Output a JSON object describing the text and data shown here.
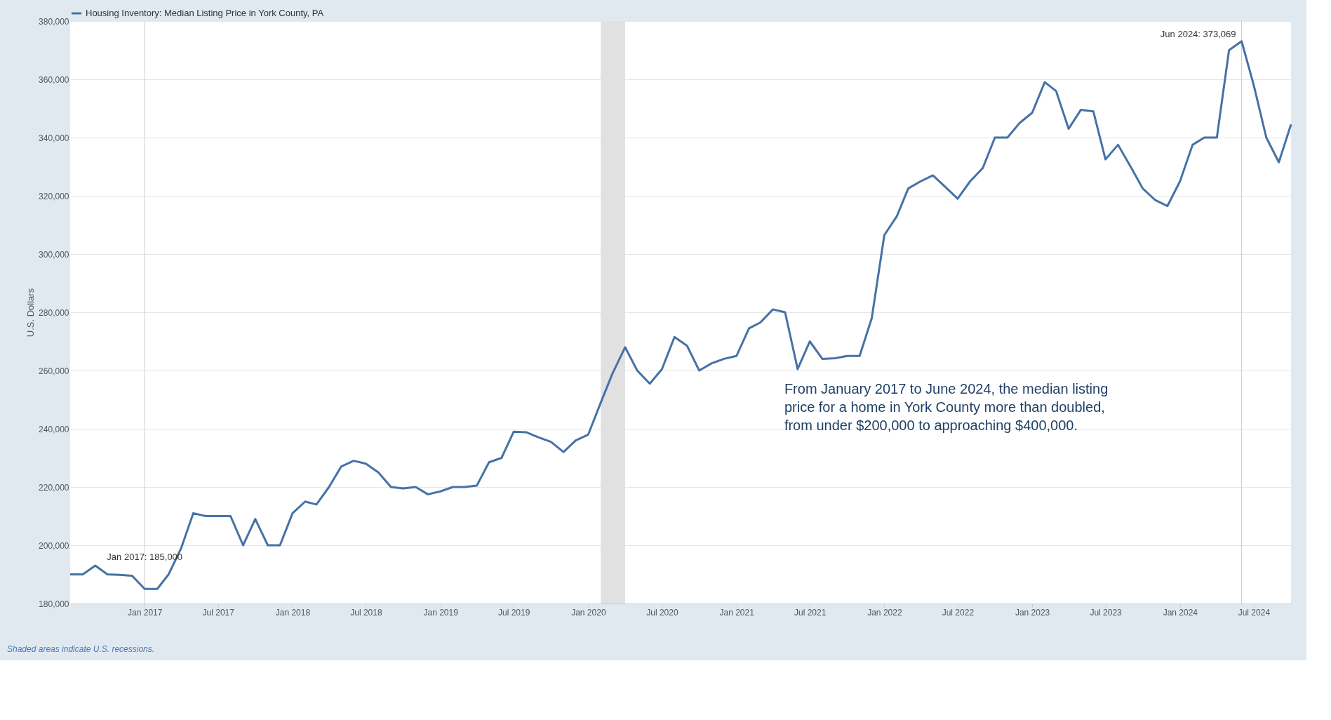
{
  "chart_data": {
    "type": "line",
    "ylabel": "U.S. Dollars",
    "x": [
      "2016-07",
      "2016-08",
      "2016-09",
      "2016-10",
      "2016-11",
      "2016-12",
      "2017-01",
      "2017-02",
      "2017-03",
      "2017-04",
      "2017-05",
      "2017-06",
      "2017-07",
      "2017-08",
      "2017-09",
      "2017-10",
      "2017-11",
      "2017-12",
      "2018-01",
      "2018-02",
      "2018-03",
      "2018-04",
      "2018-05",
      "2018-06",
      "2018-07",
      "2018-08",
      "2018-09",
      "2018-10",
      "2018-11",
      "2018-12",
      "2019-01",
      "2019-02",
      "2019-03",
      "2019-04",
      "2019-05",
      "2019-06",
      "2019-07",
      "2019-08",
      "2019-09",
      "2019-10",
      "2019-11",
      "2019-12",
      "2020-01",
      "2020-02",
      "2020-03",
      "2020-04",
      "2020-05",
      "2020-06",
      "2020-07",
      "2020-08",
      "2020-09",
      "2020-10",
      "2020-11",
      "2020-12",
      "2021-01",
      "2021-02",
      "2021-03",
      "2021-04",
      "2021-05",
      "2021-06",
      "2021-07",
      "2021-08",
      "2021-09",
      "2021-10",
      "2021-11",
      "2021-12",
      "2022-01",
      "2022-02",
      "2022-03",
      "2022-04",
      "2022-05",
      "2022-06",
      "2022-07",
      "2022-08",
      "2022-09",
      "2022-10",
      "2022-11",
      "2022-12",
      "2023-01",
      "2023-02",
      "2023-03",
      "2023-04",
      "2023-05",
      "2023-06",
      "2023-07",
      "2023-08",
      "2023-09",
      "2023-10",
      "2023-11",
      "2023-12",
      "2024-01",
      "2024-02",
      "2024-03",
      "2024-04",
      "2024-05",
      "2024-06",
      "2024-07",
      "2024-08",
      "2024-09",
      "2024-10"
    ],
    "series": [
      {
        "name": "Housing Inventory: Median Listing Price in York County, PA",
        "color": "#4572a7",
        "values": [
          190000,
          190000,
          193000,
          190000,
          189800,
          189500,
          185000,
          185000,
          190000,
          199000,
          211000,
          210000,
          210000,
          210000,
          200000,
          209000,
          200000,
          200000,
          211000,
          215000,
          214000,
          220000,
          227000,
          229000,
          228000,
          225000,
          220000,
          219500,
          220000,
          217500,
          218500,
          220000,
          220000,
          220500,
          228500,
          230000,
          239000,
          238800,
          237000,
          235500,
          232000,
          236000,
          238000,
          249000,
          259000,
          268000,
          260000,
          255500,
          260500,
          271500,
          268500,
          260000,
          262500,
          264000,
          265000,
          274500,
          276500,
          281000,
          280000,
          260500,
          270000,
          264000,
          264200,
          265000,
          265000,
          278000,
          306500,
          313000,
          322500,
          325000,
          327000,
          323000,
          319000,
          325000,
          329500,
          340000,
          340000,
          345000,
          348500,
          359000,
          356000,
          343000,
          349500,
          349000,
          332500,
          337500,
          330000,
          322500,
          318500,
          316500,
          325000,
          337500,
          340000,
          340000,
          370000,
          373069,
          358000,
          340000,
          331500,
          344500
        ]
      }
    ],
    "xlim": [
      "2016-07",
      "2024-10"
    ],
    "xticks": [
      {
        "value": "2017-01",
        "label": "Jan 2017"
      },
      {
        "value": "2017-07",
        "label": "Jul 2017"
      },
      {
        "value": "2018-01",
        "label": "Jan 2018"
      },
      {
        "value": "2018-07",
        "label": "Jul 2018"
      },
      {
        "value": "2019-01",
        "label": "Jan 2019"
      },
      {
        "value": "2019-07",
        "label": "Jul 2019"
      },
      {
        "value": "2020-01",
        "label": "Jan 2020"
      },
      {
        "value": "2020-07",
        "label": "Jul 2020"
      },
      {
        "value": "2021-01",
        "label": "Jan 2021"
      },
      {
        "value": "2021-07",
        "label": "Jul 2021"
      },
      {
        "value": "2022-01",
        "label": "Jan 2022"
      },
      {
        "value": "2022-07",
        "label": "Jul 2022"
      },
      {
        "value": "2023-01",
        "label": "Jan 2023"
      },
      {
        "value": "2023-07",
        "label": "Jul 2023"
      },
      {
        "value": "2024-01",
        "label": "Jan 2024"
      },
      {
        "value": "2024-07",
        "label": "Jul 2024"
      }
    ],
    "ylim": [
      180000,
      380000
    ],
    "yticks": [
      {
        "value": 180000,
        "label": "180,000"
      },
      {
        "value": 200000,
        "label": "200,000"
      },
      {
        "value": 220000,
        "label": "220,000"
      },
      {
        "value": 240000,
        "label": "240,000"
      },
      {
        "value": 260000,
        "label": "260,000"
      },
      {
        "value": 280000,
        "label": "280,000"
      },
      {
        "value": 300000,
        "label": "300,000"
      },
      {
        "value": 320000,
        "label": "320,000"
      },
      {
        "value": 340000,
        "label": "340,000"
      },
      {
        "value": 360000,
        "label": "360,000"
      },
      {
        "value": 380000,
        "label": "380,000"
      }
    ],
    "grid": "y",
    "legend": "top left",
    "marker": "none",
    "line_style": "solid",
    "bands": [
      {
        "axis": "x",
        "from": "2020-02",
        "to": "2020-04",
        "color": "#e1e1e1"
      }
    ],
    "ref_lines": [
      {
        "axis": "x",
        "value": "2017-01",
        "color": "#cccccc"
      },
      {
        "axis": "x",
        "value": "2024-06",
        "color": "#cccccc"
      }
    ],
    "annotations": [
      {
        "text": "Jan 2017: 185,000",
        "x": "2017-01",
        "y": 185000
      },
      {
        "text": "Jun 2024: 373,069",
        "x": "2024-06",
        "y": 373069
      },
      "From January 2017 to June 2024, the median listing\nprice for a home in York County more than doubled,\nfrom under $200,000 to approaching $400,000.",
      "Shaded areas indicate U.S. recessions."
    ]
  }
}
